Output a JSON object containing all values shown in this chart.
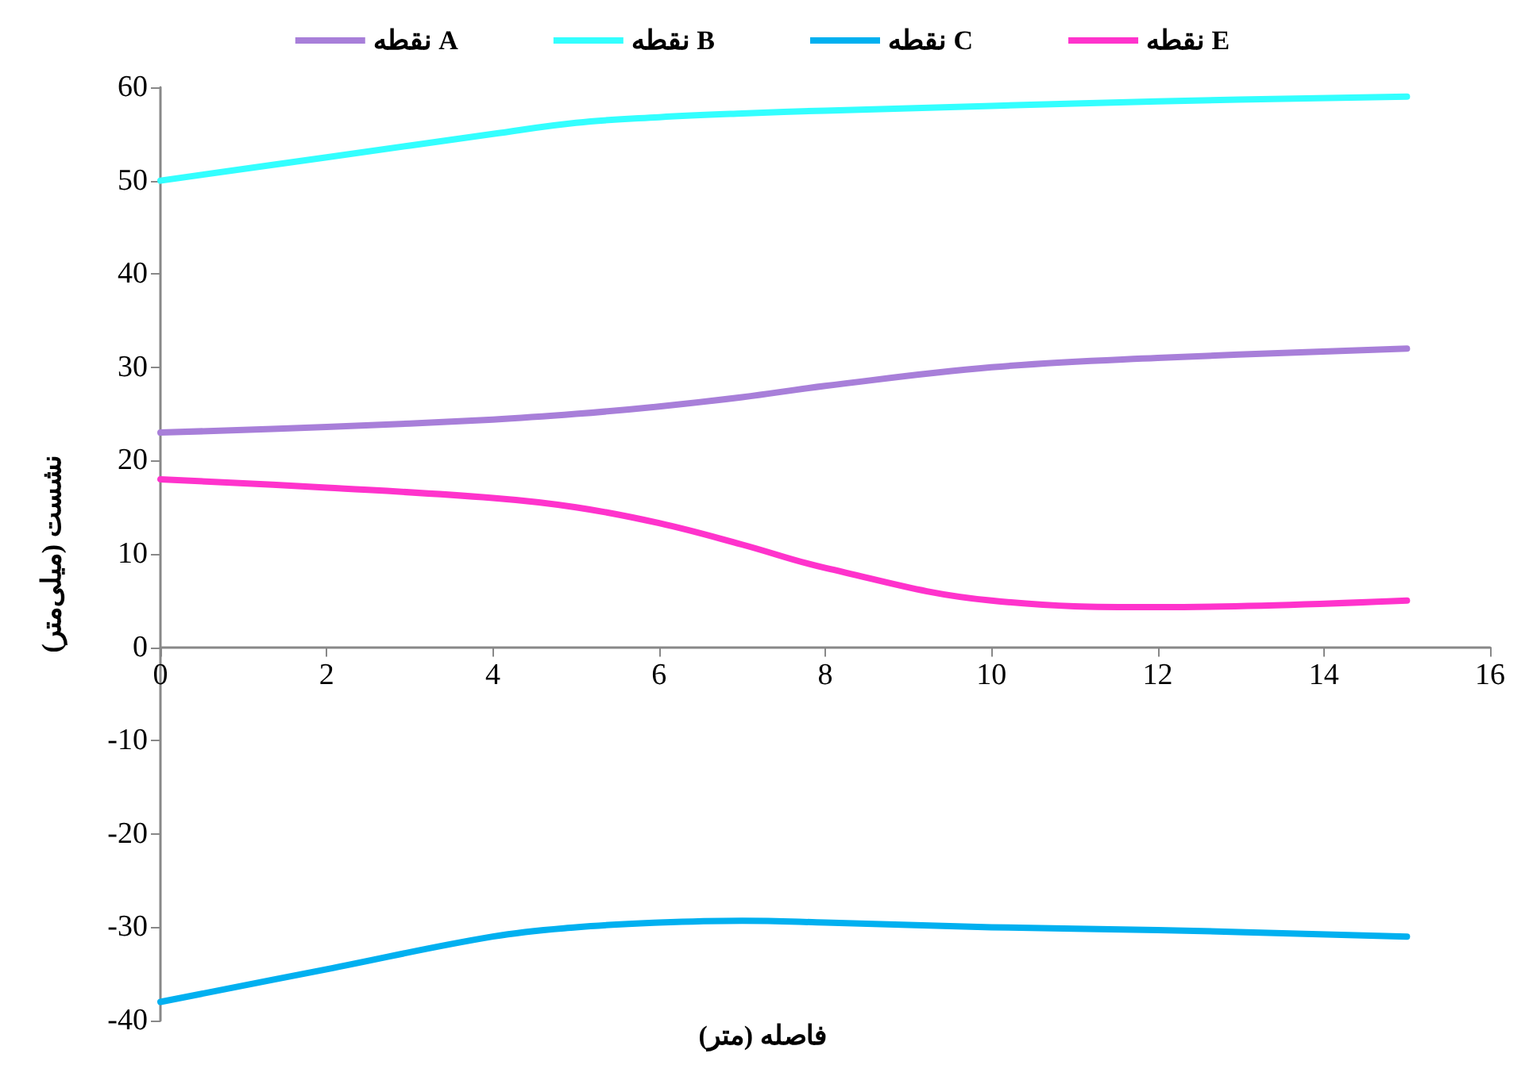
{
  "chart_data": {
    "type": "line",
    "xlabel": "فاصله (متر)",
    "ylabel": "نشست (میلی‌متر)",
    "xlim": [
      0,
      16
    ],
    "xticks": [
      0,
      2,
      4,
      6,
      8,
      10,
      12,
      14,
      16
    ],
    "ylim": [
      -40,
      60
    ],
    "yticks": [
      -40,
      -30,
      -20,
      -10,
      0,
      10,
      20,
      30,
      40,
      50,
      60
    ],
    "grid": false,
    "legend": "top",
    "marker": "none",
    "line_style": "solid",
    "x": [
      0,
      2,
      4,
      5,
      6,
      7,
      8,
      10,
      12,
      15
    ],
    "series": [
      {
        "name": "نقطه A",
        "color": "#a87fd9",
        "values": [
          23,
          23.6,
          24.4,
          25,
          25.8,
          26.8,
          28,
          30,
          31,
          32
        ]
      },
      {
        "name": "نقطه B",
        "color": "#33ffff",
        "values": [
          50,
          52.5,
          55,
          56.2,
          56.8,
          57.2,
          57.5,
          58,
          58.5,
          59
        ]
      },
      {
        "name": "نقطه C",
        "color": "#00b0f0",
        "values": [
          -38,
          -34.5,
          -31,
          -30,
          -29.5,
          -29.3,
          -29.5,
          -30,
          -30.3,
          -31
        ]
      },
      {
        "name": "نقطه E",
        "color": "#ff33cc",
        "values": [
          18,
          17.1,
          16,
          15,
          13.3,
          11,
          8.5,
          5,
          4.3,
          5
        ]
      }
    ]
  }
}
